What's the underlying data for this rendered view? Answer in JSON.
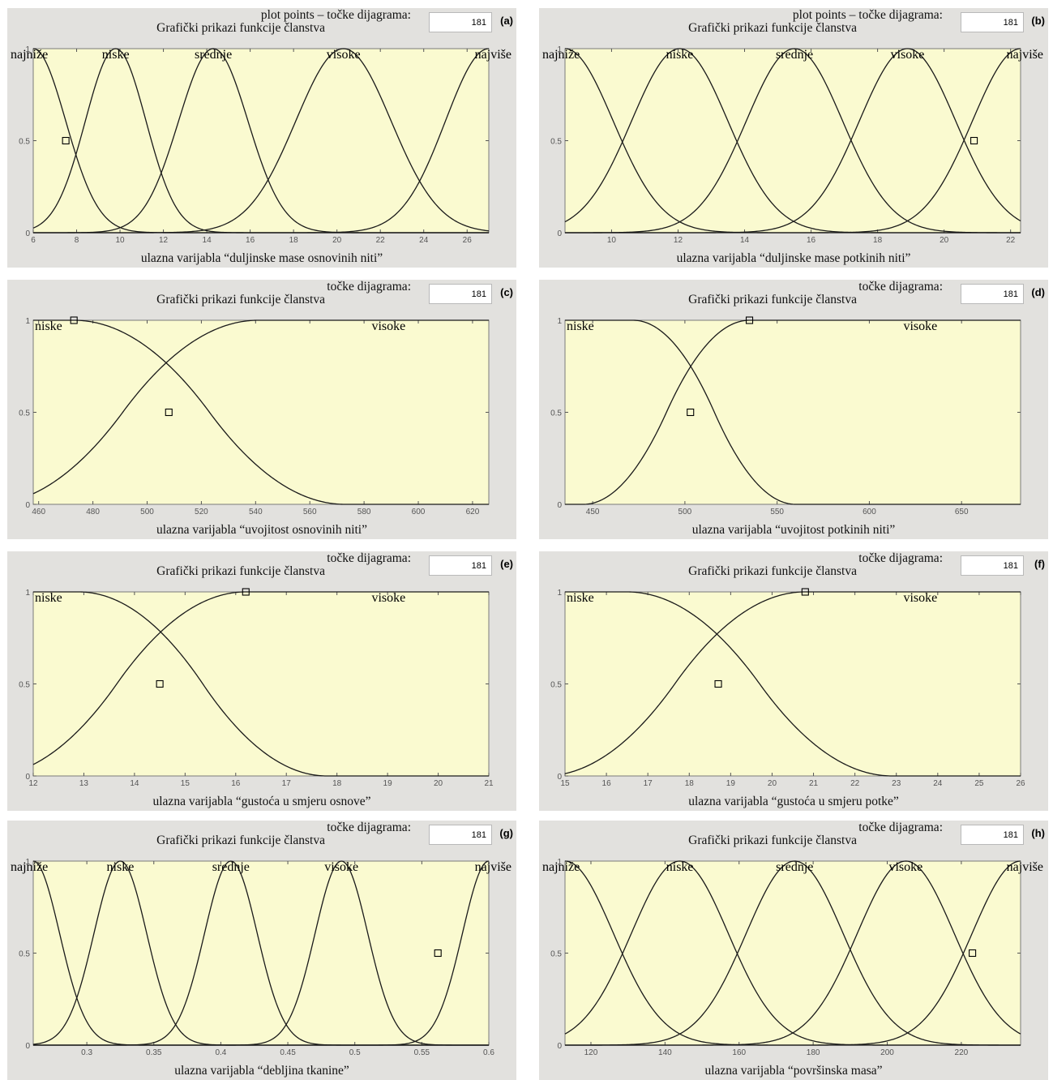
{
  "panels": [
    {
      "id": "(a)",
      "header_top": "plot points – točke dijagrama:",
      "header_bottom": "Grafički prikazi funkcije članstva",
      "plot_points_value": "181",
      "chart_data": {
        "type": "line",
        "xlabel": "ulazna varijabla “duljinske mase osnovinih niti”",
        "xlim": [
          6,
          27
        ],
        "ylim": [
          0,
          1
        ],
        "xticks": [
          6,
          8,
          10,
          12,
          14,
          16,
          18,
          20,
          22,
          24,
          26
        ],
        "yticks": [
          0,
          0.5,
          1
        ],
        "series": [
          {
            "name": "najniže",
            "shape": "gauss",
            "center": 6.0,
            "sigma": 1.5
          },
          {
            "name": "niske",
            "shape": "gauss",
            "center": 9.8,
            "sigma": 1.4
          },
          {
            "name": "srednje",
            "shape": "gauss",
            "center": 14.3,
            "sigma": 1.6
          },
          {
            "name": "visoke",
            "shape": "gauss",
            "center": 20.3,
            "sigma": 2.2
          },
          {
            "name": "najviše",
            "shape": "gauss",
            "center": 27.0,
            "sigma": 2.0
          }
        ],
        "marker": {
          "x": 7.5,
          "y": 0.5
        }
      }
    },
    {
      "id": "(b)",
      "header_top": "plot points – točke dijagrama:",
      "header_bottom": "Grafički prikazi funkcije članstva",
      "plot_points_value": "181",
      "chart_data": {
        "type": "line",
        "xlabel": "ulazna varijabla “duljinske mase potkinih niti”",
        "xlim": [
          8.6,
          22.3
        ],
        "ylim": [
          0,
          1
        ],
        "xticks": [
          10,
          12,
          14,
          16,
          18,
          20,
          22
        ],
        "yticks": [
          0,
          0.5,
          1
        ],
        "series": [
          {
            "name": "najniže",
            "shape": "gauss",
            "center": 8.6,
            "sigma": 1.45
          },
          {
            "name": "niske",
            "shape": "gauss",
            "center": 12.05,
            "sigma": 1.45
          },
          {
            "name": "srednje",
            "shape": "gauss",
            "center": 15.5,
            "sigma": 1.45
          },
          {
            "name": "visoke",
            "shape": "gauss",
            "center": 18.9,
            "sigma": 1.45
          },
          {
            "name": "najviše",
            "shape": "gauss",
            "center": 22.3,
            "sigma": 1.45
          }
        ],
        "marker": {
          "x": 20.9,
          "y": 0.5
        }
      }
    },
    {
      "id": "(c)",
      "header_top": "točke dijagrama:",
      "header_bottom": "Grafički prikazi funkcije članstva",
      "plot_points_value": "181",
      "chart_data": {
        "type": "line",
        "xlabel": "ulazna varijabla “uvojitost osnovinih niti”",
        "xlim": [
          458,
          626
        ],
        "ylim": [
          0,
          1
        ],
        "xticks": [
          460,
          480,
          500,
          520,
          540,
          560,
          580,
          600,
          620
        ],
        "yticks": [
          0,
          0.5,
          1
        ],
        "series": [
          {
            "name": "niske",
            "shape": "zshape",
            "a": 473,
            "b": 573
          },
          {
            "name": "visoke",
            "shape": "sshape",
            "a": 441,
            "b": 541
          }
        ],
        "marker_list": [
          {
            "x": 473,
            "y": 1
          },
          {
            "x": 508,
            "y": 0.5
          }
        ]
      }
    },
    {
      "id": "(d)",
      "header_top": "točke dijagrama:",
      "header_bottom": "Grafički prikazi funkcije članstva",
      "plot_points_value": "181",
      "chart_data": {
        "type": "line",
        "xlabel": "ulazna varijabla “uvojitost potkinih niti”",
        "xlim": [
          435,
          682
        ],
        "ylim": [
          0,
          1
        ],
        "xticks": [
          450,
          500,
          550,
          600,
          650
        ],
        "yticks": [
          0,
          0.5,
          1
        ],
        "series": [
          {
            "name": "niske",
            "shape": "zshape",
            "a": 472,
            "b": 560
          },
          {
            "name": "visoke",
            "shape": "sshape",
            "a": 445,
            "b": 535
          }
        ],
        "marker_list": [
          {
            "x": 535,
            "y": 1
          },
          {
            "x": 503,
            "y": 0.5
          }
        ]
      }
    },
    {
      "id": "(e)",
      "header_top": "točke dijagrama:",
      "header_bottom": "Grafički prikazi funkcije članstva",
      "plot_points_value": "181",
      "chart_data": {
        "type": "line",
        "xlabel": "ulazna varijabla “gustoća u smjeru osnove”",
        "xlim": [
          12,
          21
        ],
        "ylim": [
          0,
          1
        ],
        "xticks": [
          12,
          13,
          14,
          15,
          16,
          17,
          18,
          19,
          20,
          21
        ],
        "yticks": [
          0,
          0.5,
          1
        ],
        "series": [
          {
            "name": "niske",
            "shape": "zshape",
            "a": 12.9,
            "b": 17.8
          },
          {
            "name": "visoke",
            "shape": "sshape",
            "a": 11.1,
            "b": 16.2
          }
        ],
        "marker_list": [
          {
            "x": 16.2,
            "y": 1
          },
          {
            "x": 14.5,
            "y": 0.5
          }
        ]
      }
    },
    {
      "id": "(f)",
      "header_top": "točke dijagrama:",
      "header_bottom": "Grafički prikazi funkcije članstva",
      "plot_points_value": "181",
      "chart_data": {
        "type": "line",
        "xlabel": "ulazna varijabla “gustoća u smjeru potke”",
        "xlim": [
          15,
          26
        ],
        "ylim": [
          0,
          1
        ],
        "xticks": [
          15,
          16,
          17,
          18,
          19,
          20,
          21,
          22,
          23,
          24,
          25,
          26
        ],
        "yticks": [
          0,
          0.5,
          1
        ],
        "series": [
          {
            "name": "niske",
            "shape": "zshape",
            "a": 16.5,
            "b": 22.9
          },
          {
            "name": "visoke",
            "shape": "sshape",
            "a": 14.5,
            "b": 20.8
          }
        ],
        "marker_list": [
          {
            "x": 20.8,
            "y": 1
          },
          {
            "x": 18.7,
            "y": 0.5
          }
        ]
      }
    },
    {
      "id": "(g)",
      "header_top": "točke dijagrama:",
      "header_bottom": "Grafički prikazi funkcije članstva",
      "plot_points_value": "181",
      "chart_data": {
        "type": "line",
        "xlabel": "ulazna varijabla “debljina tkanine”",
        "xlim": [
          0.26,
          0.6
        ],
        "ylim": [
          0,
          1
        ],
        "xticks": [
          0.3,
          0.35,
          0.4,
          0.45,
          0.5,
          0.55,
          0.6
        ],
        "yticks": [
          0,
          0.5,
          1
        ],
        "series": [
          {
            "name": "najniže",
            "shape": "gauss",
            "center": 0.26,
            "sigma": 0.0197
          },
          {
            "name": "niske",
            "shape": "gauss",
            "center": 0.325,
            "sigma": 0.0197
          },
          {
            "name": "srednje",
            "shape": "gauss",
            "center": 0.4075,
            "sigma": 0.0197
          },
          {
            "name": "visoke",
            "shape": "gauss",
            "center": 0.49,
            "sigma": 0.0197
          },
          {
            "name": "najviše",
            "shape": "gauss",
            "center": 0.6,
            "sigma": 0.0197
          }
        ],
        "marker": {
          "x": 0.562,
          "y": 0.5
        }
      }
    },
    {
      "id": "(h)",
      "header_top": "točke dijagrama:",
      "header_bottom": "Grafički prikazi funkcije članstva",
      "plot_points_value": "181",
      "chart_data": {
        "type": "line",
        "xlabel": "ulazna varijabla “površinska masa”",
        "xlim": [
          113,
          236
        ],
        "ylim": [
          0,
          1
        ],
        "xticks": [
          120,
          140,
          160,
          180,
          200,
          220
        ],
        "yticks": [
          0,
          0.5,
          1
        ],
        "series": [
          {
            "name": "najniže",
            "shape": "gauss",
            "center": 113,
            "sigma": 13.1
          },
          {
            "name": "niske",
            "shape": "gauss",
            "center": 144,
            "sigma": 13.1
          },
          {
            "name": "srednje",
            "shape": "gauss",
            "center": 175,
            "sigma": 13.1
          },
          {
            "name": "visoke",
            "shape": "gauss",
            "center": 205,
            "sigma": 13.1
          },
          {
            "name": "najviše",
            "shape": "gauss",
            "center": 236,
            "sigma": 13.1
          }
        ],
        "marker": {
          "x": 223,
          "y": 0.5
        }
      }
    }
  ],
  "colors": {
    "plot_bg": "#fafad0",
    "panel_bg": "#e2e1de",
    "curve": "#1a1a1a",
    "tick_text": "#555555"
  }
}
